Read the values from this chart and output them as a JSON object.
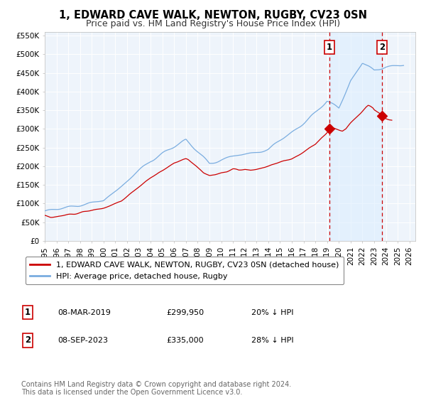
{
  "title": "1, EDWARD CAVE WALK, NEWTON, RUGBY, CV23 0SN",
  "subtitle": "Price paid vs. HM Land Registry's House Price Index (HPI)",
  "ylim": [
    0,
    560000
  ],
  "xlim_start": 1995.0,
  "xlim_end": 2026.5,
  "yticks": [
    0,
    50000,
    100000,
    150000,
    200000,
    250000,
    300000,
    350000,
    400000,
    450000,
    500000,
    550000
  ],
  "ytick_labels": [
    "£0",
    "£50K",
    "£100K",
    "£150K",
    "£200K",
    "£250K",
    "£300K",
    "£350K",
    "£400K",
    "£450K",
    "£500K",
    "£550K"
  ],
  "xticks": [
    1995,
    1996,
    1997,
    1998,
    1999,
    2000,
    2001,
    2002,
    2003,
    2004,
    2005,
    2006,
    2007,
    2008,
    2009,
    2010,
    2011,
    2012,
    2013,
    2014,
    2015,
    2016,
    2017,
    2018,
    2019,
    2020,
    2021,
    2022,
    2023,
    2024,
    2025,
    2026
  ],
  "red_line_color": "#cc0000",
  "blue_line_color": "#7aade0",
  "shade_color": "#ddeeff",
  "background_color": "#ffffff",
  "plot_bg_color": "#eef4fb",
  "grid_color": "#ffffff",
  "marker1_x": 2019.18,
  "marker1_y": 299950,
  "marker2_x": 2023.68,
  "marker2_y": 335000,
  "vline1_x": 2019.18,
  "vline2_x": 2023.68,
  "legend_red_label": "1, EDWARD CAVE WALK, NEWTON, RUGBY, CV23 0SN (detached house)",
  "legend_blue_label": "HPI: Average price, detached house, Rugby",
  "annotation1_num": "1",
  "annotation1_date": "08-MAR-2019",
  "annotation1_price": "£299,950",
  "annotation1_hpi": "20% ↓ HPI",
  "annotation2_num": "2",
  "annotation2_date": "08-SEP-2023",
  "annotation2_price": "£335,000",
  "annotation2_hpi": "28% ↓ HPI",
  "footnote": "Contains HM Land Registry data © Crown copyright and database right 2024.\nThis data is licensed under the Open Government Licence v3.0.",
  "title_fontsize": 10.5,
  "subtitle_fontsize": 9,
  "tick_fontsize": 7.5,
  "legend_fontsize": 8,
  "annotation_fontsize": 8,
  "footnote_fontsize": 7
}
